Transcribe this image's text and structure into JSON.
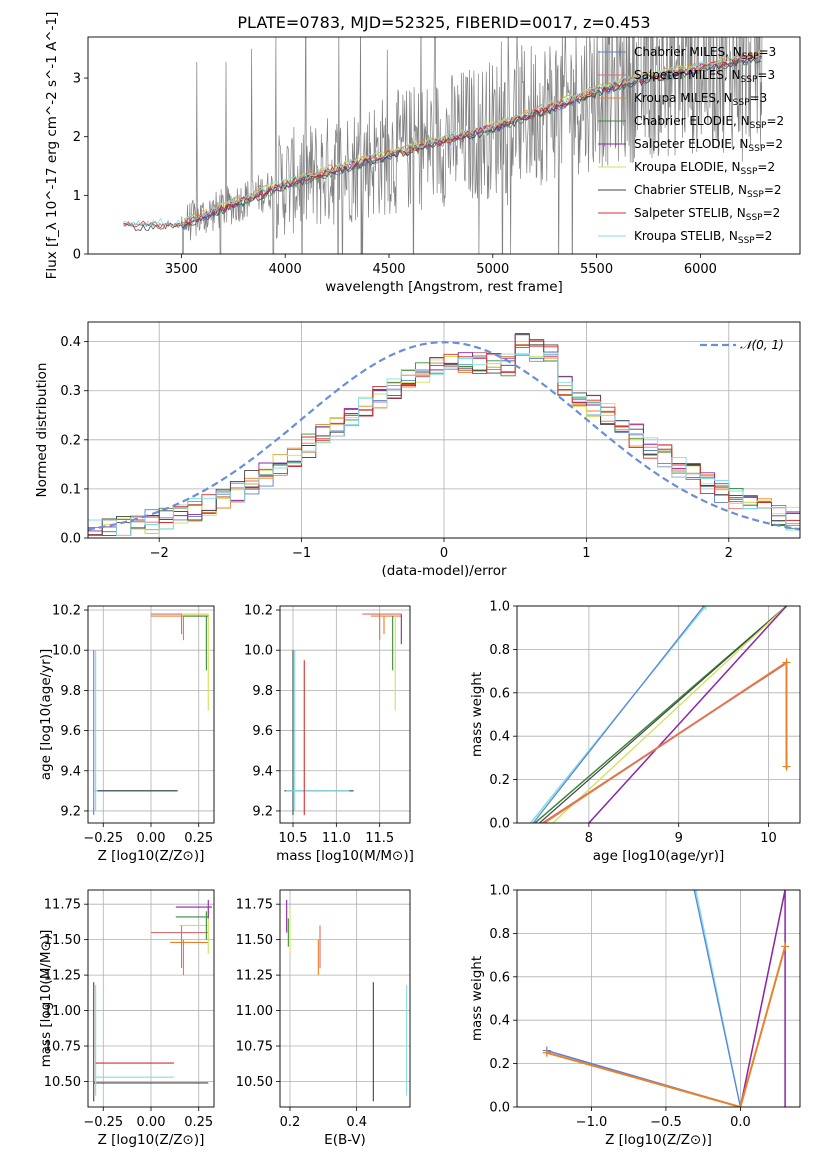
{
  "title": "PLATE=0783, MJD=52325, FIBERID=0017, z=0.453",
  "legend_entries": [
    {
      "text": "Chabrier MILES, N",
      "sub": "SSP",
      "suffix": "=3",
      "color": "#5b7fd6"
    },
    {
      "text": "Salpeter MILES, N",
      "sub": "SSP",
      "suffix": "=3",
      "color": "#d96f6f"
    },
    {
      "text": "Kroupa MILES, N",
      "sub": "SSP",
      "suffix": "=3",
      "color": "#e8822a"
    },
    {
      "text": "Chabrier ELODIE, N",
      "sub": "SSP",
      "suffix": "=2",
      "color": "#3c8a3c"
    },
    {
      "text": "Salpeter ELODIE, N",
      "sub": "SSP",
      "suffix": "=2",
      "color": "#8e24aa"
    },
    {
      "text": "Kroupa ELODIE, N",
      "sub": "SSP",
      "suffix": "=2",
      "color": "#d4e157"
    },
    {
      "text": "Chabrier STELIB, N",
      "sub": "SSP",
      "suffix": "=2",
      "color": "#444444"
    },
    {
      "text": "Salpeter STELIB, N",
      "sub": "SSP",
      "suffix": "=2",
      "color": "#d32f2f"
    },
    {
      "text": "Kroupa STELIB, N",
      "sub": "SSP",
      "suffix": "=2",
      "color": "#80deea"
    }
  ],
  "chart_data": [
    {
      "id": "spectrum",
      "type": "line",
      "title": "PLATE=0783, MJD=52325, FIBERID=0017, z=0.453",
      "xlabel": "wavelength [Angstrom, rest frame]",
      "ylabel": "Flux [f_λ 10^-17 erg cm^-2 s^-1 A^-1]",
      "xlim": [
        3050,
        6480
      ],
      "ylim": [
        0,
        3.7
      ],
      "xticks": [
        "3500",
        "4000",
        "4500",
        "5000",
        "5500",
        "6000"
      ],
      "yticks": [
        "0",
        "1",
        "2",
        "3"
      ],
      "data_color": "#888888",
      "model_points": {
        "x": [
          3500,
          3800,
          4000,
          4200,
          4500,
          5000,
          5500,
          6000,
          6300
        ],
        "y": [
          0.6,
          0.9,
          1.2,
          1.5,
          1.8,
          2.2,
          2.8,
          3.2,
          3.4
        ]
      }
    },
    {
      "id": "residuals",
      "type": "line",
      "xlabel": "(data-model)/error",
      "ylabel": "Normed distribution",
      "xlim": [
        -2.5,
        2.5
      ],
      "ylim": [
        0,
        0.44
      ],
      "xticks": [
        "−2",
        "−1",
        "0",
        "1",
        "2"
      ],
      "yticks": [
        "0.0",
        "0.1",
        "0.2",
        "0.3",
        "0.4"
      ],
      "legend": "𝒩(0, 1)",
      "gaussian_color": "#6b8fd6",
      "series": [
        {
          "name": "Chabrier MILES",
          "values": [
            0.02,
            0.03,
            0.04,
            0.06,
            0.08,
            0.1,
            0.12,
            0.15,
            0.18,
            0.21,
            0.24,
            0.26,
            0.28,
            0.3,
            0.31,
            0.32,
            0.33,
            0.35,
            0.36,
            0.37,
            0.36,
            0.35,
            0.32,
            0.3,
            0.27,
            0.24,
            0.21,
            0.18,
            0.15,
            0.12,
            0.1,
            0.08,
            0.06,
            0.05
          ]
        },
        {
          "name": "Kroupa ELODIE",
          "values": [
            0.02,
            0.03,
            0.05,
            0.07,
            0.09,
            0.11,
            0.13,
            0.16,
            0.19,
            0.22,
            0.25,
            0.27,
            0.29,
            0.31,
            0.32,
            0.34,
            0.35,
            0.37,
            0.38,
            0.39,
            0.37,
            0.36,
            0.33,
            0.3,
            0.27,
            0.24,
            0.2,
            0.17,
            0.14,
            0.12,
            0.1,
            0.08,
            0.06,
            0.05
          ]
        }
      ]
    },
    {
      "id": "age-vs-Z",
      "type": "scatter",
      "xlabel": "Z [log10(Z/Z⊙)]",
      "ylabel": "age [log10(age/yr)]",
      "xlim": [
        -0.33,
        0.33
      ],
      "ylim": [
        9.14,
        10.22
      ],
      "xticks": [
        "−0.25",
        "0.00",
        "0.25"
      ],
      "yticks": [
        "9.2",
        "9.4",
        "9.6",
        "9.8",
        "10.0",
        "10.2"
      ]
    },
    {
      "id": "age-vs-mass",
      "type": "scatter",
      "xlabel": "mass [log10(M/M⊙)]",
      "ylabel": "",
      "xlim": [
        10.35,
        11.85
      ],
      "ylim": [
        9.14,
        10.22
      ],
      "xticks": [
        "10.5",
        "11.0",
        "11.5"
      ],
      "yticks": [
        "9.2",
        "9.4",
        "9.6",
        "9.8",
        "10.0",
        "10.2"
      ]
    },
    {
      "id": "weight-vs-age",
      "type": "line",
      "xlabel": "age [log10(age/yr)]",
      "ylabel": "mass weight",
      "xlim": [
        7.2,
        10.35
      ],
      "ylim": [
        0,
        1
      ],
      "xticks": [
        "8",
        "9",
        "10"
      ],
      "yticks": [
        "0.0",
        "0.2",
        "0.4",
        "0.6",
        "0.8",
        "1.0"
      ]
    },
    {
      "id": "mass-vs-Z",
      "type": "scatter",
      "xlabel": "Z [log10(Z/Z⊙)]",
      "ylabel": "mass [log10(M/M⊙)]",
      "xlim": [
        -0.33,
        0.33
      ],
      "ylim": [
        10.32,
        11.85
      ],
      "xticks": [
        "−0.25",
        "0.00",
        "0.25"
      ],
      "yticks": [
        "10.50",
        "10.75",
        "11.00",
        "11.25",
        "11.50",
        "11.75"
      ]
    },
    {
      "id": "mass-vs-EBV",
      "type": "scatter",
      "xlabel": "E(B-V)",
      "ylabel": "",
      "xlim": [
        0.17,
        0.56
      ],
      "ylim": [
        10.32,
        11.85
      ],
      "xticks": [
        "0.2",
        "0.4"
      ],
      "yticks": [
        "10.50",
        "10.75",
        "11.00",
        "11.25",
        "11.50",
        "11.75"
      ]
    },
    {
      "id": "weight-vs-Z",
      "type": "line",
      "xlabel": "Z [log10(Z/Z⊙)]",
      "ylabel": "mass weight",
      "xlim": [
        -1.5,
        0.4
      ],
      "ylim": [
        0,
        1
      ],
      "xticks": [
        "−1.0",
        "−0.5",
        "0.0"
      ],
      "yticks": [
        "0.0",
        "0.2",
        "0.4",
        "0.6",
        "0.8",
        "1.0"
      ]
    }
  ]
}
